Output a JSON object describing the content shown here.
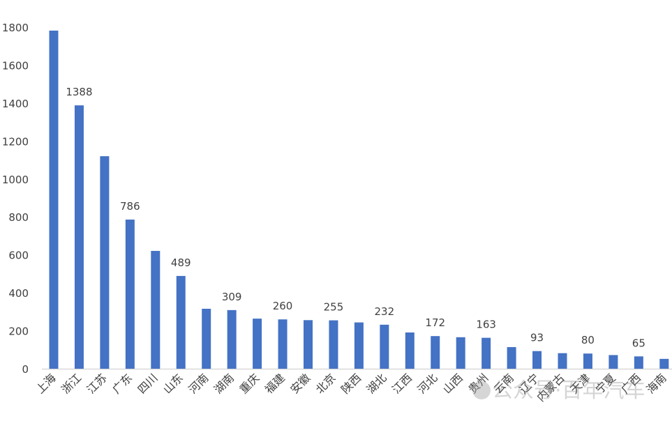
{
  "chart_data": {
    "type": "bar",
    "title": "",
    "xlabel": "",
    "ylabel": "",
    "ylim": [
      0,
      1800
    ],
    "yticks": [
      0,
      200,
      400,
      600,
      800,
      1000,
      1200,
      1400,
      1600,
      1800
    ],
    "grid": false,
    "bar_color": "#4472C4",
    "categories": [
      "上海",
      "浙江",
      "江苏",
      "广东",
      "四川",
      "山东",
      "河南",
      "湖南",
      "重庆",
      "福建",
      "安徽",
      "北京",
      "陕西",
      "湖北",
      "江西",
      "河北",
      "山西",
      "贵州",
      "云南",
      "辽宁",
      "内蒙古",
      "天津",
      "宁夏",
      "广西",
      "海南"
    ],
    "values": [
      1782,
      1388,
      1120,
      786,
      621,
      489,
      316,
      309,
      264,
      260,
      256,
      255,
      244,
      232,
      191,
      172,
      166,
      163,
      114,
      93,
      82,
      80,
      72,
      65,
      52
    ],
    "data_labels_shown": [
      false,
      true,
      false,
      true,
      false,
      true,
      false,
      true,
      false,
      true,
      false,
      true,
      false,
      true,
      false,
      true,
      false,
      true,
      false,
      true,
      false,
      true,
      false,
      true,
      false
    ],
    "watermark": "公众号·百年汽车"
  }
}
